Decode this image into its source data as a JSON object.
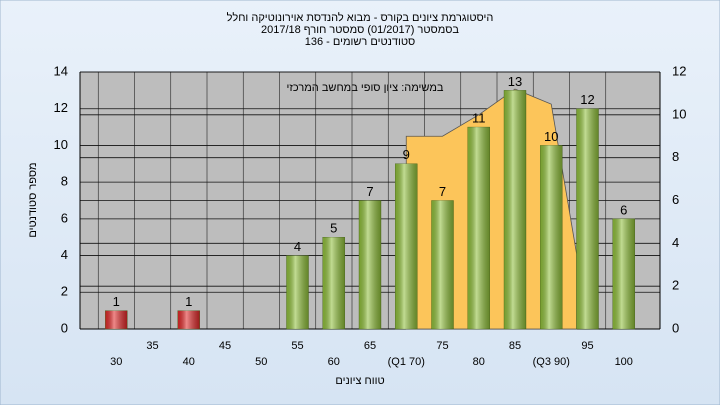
{
  "chart_data": {
    "type": "bar",
    "title": [
      "היסטוגרמת ציונים בקורס - מבוא להנדסת אוירונוטיקה וחלל",
      "בסמסטר (01/2017) סמסטר חורף 2017/18",
      "סטודנטים רשומים - 136"
    ],
    "annotation": "במשימה: ציון סופי במחשב המרכזי",
    "xlabel": "טווח ציונים",
    "ylabel": "מספר סטודנטים",
    "xlim": [
      25,
      105
    ],
    "xticks": [
      30,
      35,
      40,
      45,
      50,
      55,
      60,
      65,
      {
        "value": 70,
        "label": "(Q1 70)"
      },
      75,
      80,
      85,
      {
        "value": 90,
        "label": "(Q3 90)"
      },
      95,
      100
    ],
    "ylim": [
      0,
      14
    ],
    "yticks": [
      0,
      2,
      4,
      6,
      8,
      10,
      12,
      14
    ],
    "y2lim": [
      0,
      12
    ],
    "y2ticks": [
      0,
      2,
      4,
      6,
      8,
      10,
      12
    ],
    "grid": true,
    "series": [
      {
        "type": "area",
        "axis": "y2",
        "color": "#fcc55a",
        "x": [
          70,
          75,
          80,
          85,
          90,
          93.5
        ],
        "values": [
          9,
          9,
          10,
          11.2,
          10.5,
          3.5
        ]
      },
      {
        "type": "bar",
        "x": [
          30,
          35,
          40,
          45,
          50,
          55,
          60,
          65,
          70,
          75,
          80,
          85,
          90,
          95,
          100
        ],
        "values": [
          1,
          null,
          1,
          null,
          null,
          4,
          5,
          7,
          9,
          7,
          11,
          13,
          10,
          12,
          6
        ],
        "colors": [
          "#e02828",
          "#8fbf3a",
          "#e02828",
          "#8fbf3a",
          "#8fbf3a",
          "#8fbf3a",
          "#8fbf3a",
          "#8fbf3a",
          "#8fbf3a",
          "#8fbf3a",
          "#8fbf3a",
          "#8fbf3a",
          "#8fbf3a",
          "#8fbf3a",
          "#8fbf3a"
        ]
      }
    ]
  }
}
